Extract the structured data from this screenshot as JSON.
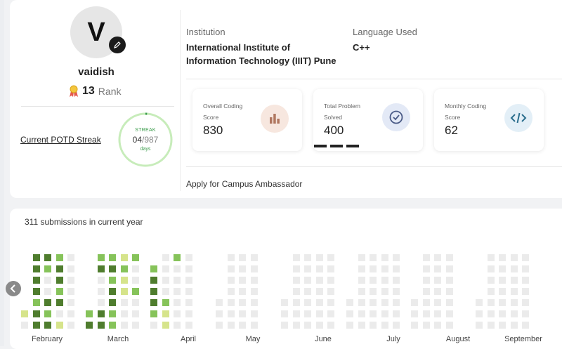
{
  "profile": {
    "avatar_letter": "V",
    "username": "vaidish",
    "rank_number": "13",
    "rank_label": "Rank",
    "potd_link": "Current POTD Streak",
    "streak": {
      "label": "STREAK",
      "current": "04",
      "total": "/987",
      "unit": "days",
      "progress": 0.004
    },
    "institution_label": "Institution",
    "institution_line1": "International Institute of",
    "institution_line2": "Information Technology (IIIT) Pune",
    "language_label": "Language Used",
    "language_value": "C++",
    "ambassador_link": "Apply for Campus Ambassador"
  },
  "stats": [
    {
      "label": "Overall Coding Score",
      "value": "830",
      "icon": "bar-chart-icon",
      "icon_bg": "#f7e7df",
      "icon_color": "#b07760"
    },
    {
      "label": "Total Problem Solved",
      "value": "400",
      "icon": "check-circle-icon",
      "icon_bg": "#e3e9f6",
      "icon_color": "#4a5a86"
    },
    {
      "label": "Monthly Coding Score",
      "value": "62",
      "icon": "code-icon",
      "icon_bg": "#e3eff7",
      "icon_color": "#2c6f8e"
    }
  ],
  "heatmap": {
    "summary": "311 submissions in current year",
    "months": [
      "February",
      "March",
      "April",
      "May",
      "June",
      "July",
      "August",
      "September"
    ],
    "colors": {
      "empty": "#ebebeb",
      "l1": "#d6e48b",
      "l2": "#86c35a",
      "l3": "#4f7d2e"
    }
  },
  "colors": {
    "accent_green": "#3a9b4a",
    "ring_green": "#c7ecba"
  }
}
